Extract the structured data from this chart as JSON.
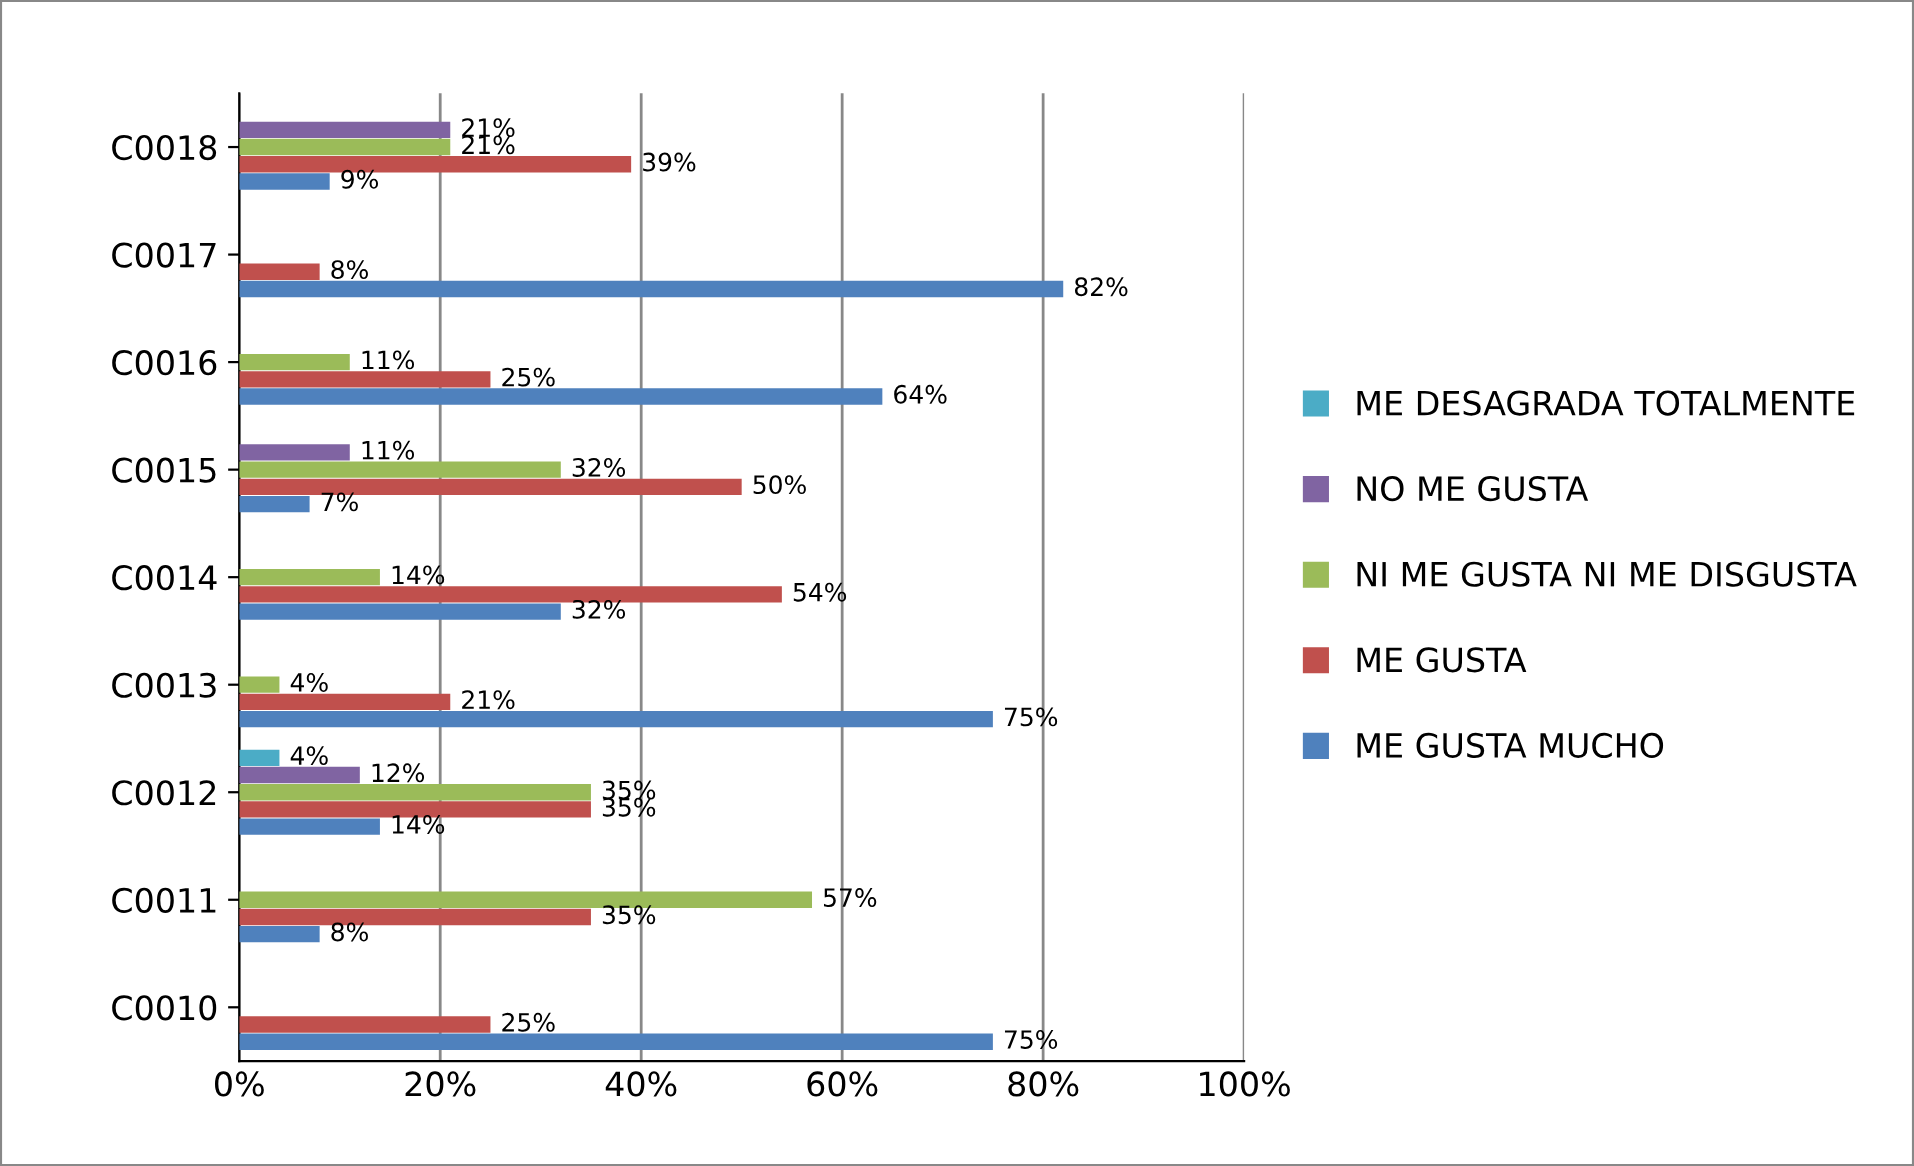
{
  "chart_data": {
    "type": "bar",
    "orientation": "horizontal",
    "categories": [
      "C0018",
      "C0017",
      "C0016",
      "C0015",
      "C0014",
      "C0013",
      "C0012",
      "C0011",
      "C0010"
    ],
    "series": [
      {
        "name": "ME GUSTA MUCHO",
        "color": "#4f81bd",
        "values": [
          9,
          82,
          64,
          7,
          32,
          75,
          14,
          8,
          75
        ],
        "value_labels": [
          "9%",
          "82%",
          "64%",
          "7%",
          "32%",
          "75%",
          "14%",
          "8%",
          "75%"
        ]
      },
      {
        "name": "ME GUSTA",
        "color": "#c0504d",
        "values": [
          39,
          8,
          25,
          50,
          54,
          21,
          35,
          35,
          25
        ],
        "value_labels": [
          "39%",
          "8%",
          "25%",
          "50%",
          "54%",
          "21%",
          "35%",
          "35%",
          "25%"
        ]
      },
      {
        "name": "NI ME GUSTA NI ME DISGUSTA",
        "color": "#9bbb59",
        "values": [
          21,
          null,
          11,
          32,
          14,
          4,
          35,
          57,
          null
        ],
        "value_labels": [
          "21%",
          null,
          "11%",
          "32%",
          "14%",
          "4%",
          "35%",
          "57%",
          null
        ]
      },
      {
        "name": "NO ME GUSTA",
        "color": "#8064a2",
        "values": [
          21,
          null,
          null,
          11,
          null,
          null,
          12,
          null,
          null
        ],
        "value_labels": [
          "21%",
          null,
          null,
          "11%",
          null,
          null,
          "12%",
          null,
          null
        ]
      },
      {
        "name": "ME DESAGRADA TOTALMENTE",
        "color": "#4bacc6",
        "values": [
          null,
          null,
          null,
          null,
          null,
          null,
          4,
          null,
          null
        ],
        "value_labels": [
          null,
          null,
          null,
          null,
          null,
          null,
          "4%",
          null,
          null
        ]
      }
    ],
    "xlim": [
      0,
      100
    ],
    "xticks": [
      {
        "value": 0,
        "label": "0%"
      },
      {
        "value": 20,
        "label": "20%"
      },
      {
        "value": 40,
        "label": "40%"
      },
      {
        "value": 60,
        "label": "60%"
      },
      {
        "value": 80,
        "label": "80%"
      },
      {
        "value": 100,
        "label": "100%"
      }
    ],
    "grid": "x",
    "legend": "right"
  }
}
